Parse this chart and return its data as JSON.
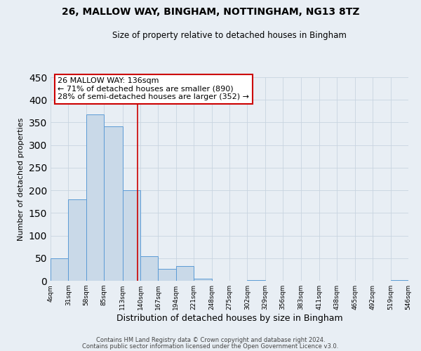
{
  "title1": "26, MALLOW WAY, BINGHAM, NOTTINGHAM, NG13 8TZ",
  "title2": "Size of property relative to detached houses in Bingham",
  "xlabel": "Distribution of detached houses by size in Bingham",
  "ylabel": "Number of detached properties",
  "bin_edges": [
    4,
    31,
    58,
    85,
    113,
    140,
    167,
    194,
    221,
    248,
    275,
    302,
    329,
    356,
    383,
    411,
    438,
    465,
    492,
    519,
    546
  ],
  "bin_labels": [
    "4sqm",
    "31sqm",
    "58sqm",
    "85sqm",
    "113sqm",
    "140sqm",
    "167sqm",
    "194sqm",
    "221sqm",
    "248sqm",
    "275sqm",
    "302sqm",
    "329sqm",
    "356sqm",
    "383sqm",
    "411sqm",
    "438sqm",
    "465sqm",
    "492sqm",
    "519sqm",
    "546sqm"
  ],
  "counts": [
    49,
    180,
    367,
    341,
    200,
    54,
    26,
    33,
    5,
    0,
    0,
    2,
    0,
    0,
    0,
    0,
    0,
    0,
    0,
    2
  ],
  "bar_facecolor": "#c9d9e8",
  "bar_edgecolor": "#5b9bd5",
  "vline_x": 136,
  "vline_color": "#cc0000",
  "annotation_line1": "26 MALLOW WAY: 136sqm",
  "annotation_line2": "← 71% of detached houses are smaller (890)",
  "annotation_line3": "28% of semi-detached houses are larger (352) →",
  "annotation_box_color": "#cc0000",
  "ylim": [
    0,
    450
  ],
  "yticks": [
    0,
    50,
    100,
    150,
    200,
    250,
    300,
    350,
    400,
    450
  ],
  "grid_color": "#c8d4e0",
  "background_color": "#e8eef4",
  "footer1": "Contains HM Land Registry data © Crown copyright and database right 2024.",
  "footer2": "Contains public sector information licensed under the Open Government Licence v3.0."
}
